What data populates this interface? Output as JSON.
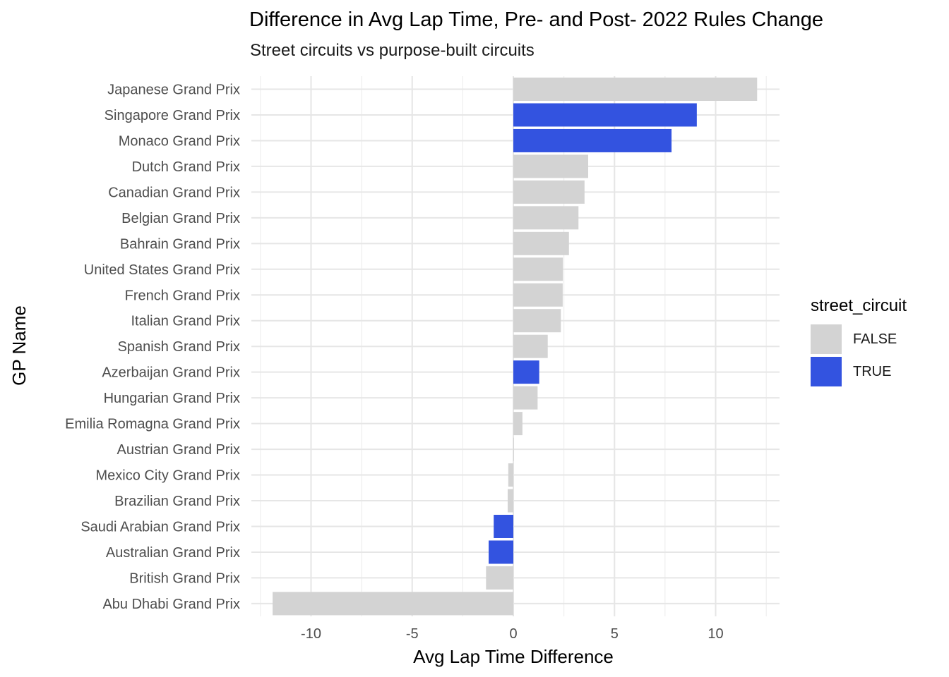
{
  "title": "Difference in Avg Lap Time, Pre- and Post- 2022 Rules Change",
  "subtitle": "Street circuits vs purpose-built circuits",
  "legend": {
    "title": "street_circuit",
    "items": [
      {
        "label": "FALSE",
        "color": "#d3d3d3"
      },
      {
        "label": "TRUE",
        "color": "#3353e0"
      }
    ]
  },
  "chart_data": {
    "type": "bar",
    "orientation": "horizontal",
    "xlabel": "Avg Lap Time Difference",
    "ylabel": "GP Name",
    "xlim": [
      -12.5,
      12.5
    ],
    "xticks": [
      -10,
      -5,
      0,
      5,
      10
    ],
    "grid": true,
    "legend_position": "right",
    "categories": [
      "Japanese Grand Prix",
      "Singapore Grand Prix",
      "Monaco Grand Prix",
      "Dutch Grand Prix",
      "Canadian Grand Prix",
      "Belgian Grand Prix",
      "Bahrain Grand Prix",
      "United States Grand Prix",
      "French Grand Prix",
      "Italian Grand Prix",
      "Spanish Grand Prix",
      "Azerbaijan Grand Prix",
      "Hungarian Grand Prix",
      "Emilia Romagna Grand Prix",
      "Austrian Grand Prix",
      "Mexico City Grand Prix",
      "Brazilian Grand Prix",
      "Saudi Arabian Grand Prix",
      "Australian Grand Prix",
      "British Grand Prix",
      "Abu Dhabi Grand Prix"
    ],
    "values": [
      12.05,
      9.07,
      7.82,
      3.7,
      3.52,
      3.22,
      2.75,
      2.45,
      2.44,
      2.35,
      1.7,
      1.28,
      1.2,
      0.45,
      0.03,
      -0.25,
      -0.28,
      -0.97,
      -1.22,
      -1.35,
      -11.9
    ],
    "street_circuit": [
      false,
      true,
      true,
      false,
      false,
      false,
      false,
      false,
      false,
      false,
      false,
      true,
      false,
      false,
      false,
      false,
      false,
      true,
      true,
      false,
      false
    ]
  }
}
